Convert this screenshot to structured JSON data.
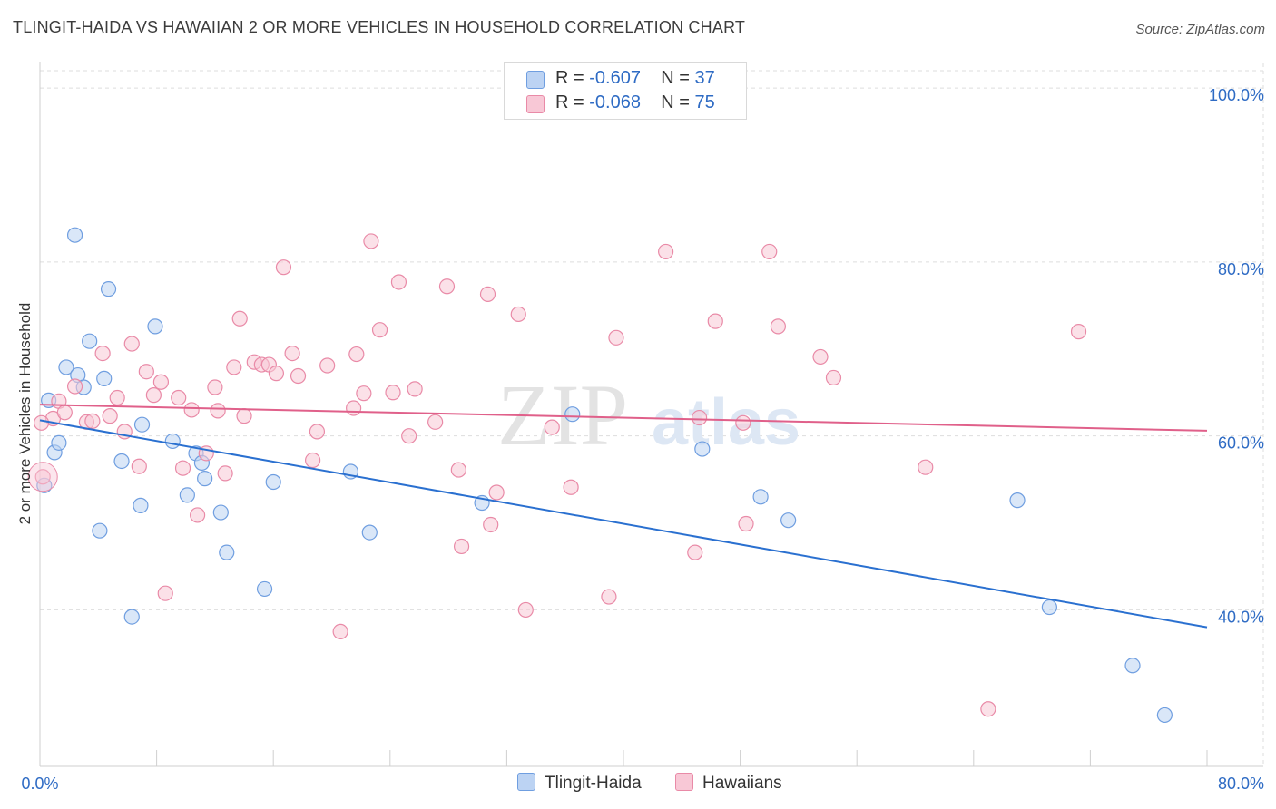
{
  "title": "TLINGIT-HAIDA VS HAWAIIAN 2 OR MORE VEHICLES IN HOUSEHOLD CORRELATION CHART",
  "source": "Source: ZipAtlas.com",
  "watermark": {
    "zip": "ZIP",
    "atlas": "atlas"
  },
  "legend": {
    "r_label": "R =",
    "n_label": "N =",
    "series": [
      {
        "name": "Tlingit-Haida",
        "r": "-0.607",
        "n": "37",
        "fill": "#bcd3f3",
        "stroke": "#6f9ee0"
      },
      {
        "name": "Hawaiians",
        "r": "-0.068",
        "n": "75",
        "fill": "#f8c8d6",
        "stroke": "#e98aa7"
      }
    ]
  },
  "colors": {
    "blue_line": "#2a70d0",
    "pink_line": "#e0608a",
    "axis_label": "#2e6bc4",
    "grid": "#dddddd"
  },
  "chart_data": {
    "type": "scatter",
    "title": "TLINGIT-HAIDA VS HAWAIIAN 2 OR MORE VEHICLES IN HOUSEHOLD CORRELATION CHART",
    "xlabel": "",
    "ylabel": "2 or more Vehicles in Household",
    "xlim": [
      0,
      80
    ],
    "ylim": [
      22,
      102
    ],
    "x_tick_labels": [
      "0.0%",
      "80.0%"
    ],
    "y_ticks": [
      40,
      60,
      80,
      100
    ],
    "y_tick_labels": [
      "40.0%",
      "60.0%",
      "80.0%",
      "100.0%"
    ],
    "grid": true,
    "series": [
      {
        "name": "Tlingit-Haida",
        "trend": {
          "x": [
            0,
            80
          ],
          "y": [
            61.8,
            38.0
          ]
        },
        "points": [
          [
            0.3,
            54.3
          ],
          [
            0.6,
            64.1
          ],
          [
            1.0,
            58.1
          ],
          [
            1.3,
            59.2
          ],
          [
            1.8,
            67.9
          ],
          [
            2.4,
            83.1
          ],
          [
            2.6,
            67.0
          ],
          [
            3.0,
            65.6
          ],
          [
            3.4,
            70.9
          ],
          [
            4.1,
            49.1
          ],
          [
            4.4,
            66.6
          ],
          [
            4.7,
            76.9
          ],
          [
            5.6,
            57.1
          ],
          [
            6.3,
            39.2
          ],
          [
            6.9,
            52.0
          ],
          [
            7.0,
            61.3
          ],
          [
            7.9,
            72.6
          ],
          [
            9.1,
            59.4
          ],
          [
            10.1,
            53.2
          ],
          [
            10.7,
            58.0
          ],
          [
            11.1,
            56.9
          ],
          [
            11.3,
            55.1
          ],
          [
            12.4,
            51.2
          ],
          [
            12.8,
            46.6
          ],
          [
            15.4,
            42.4
          ],
          [
            16.0,
            54.7
          ],
          [
            21.3,
            55.9
          ],
          [
            22.6,
            48.9
          ],
          [
            30.3,
            52.3
          ],
          [
            36.5,
            62.5
          ],
          [
            45.4,
            58.5
          ],
          [
            49.4,
            53.0
          ],
          [
            51.3,
            50.3
          ],
          [
            67.0,
            52.6
          ],
          [
            69.2,
            40.3
          ],
          [
            74.9,
            33.6
          ],
          [
            77.1,
            27.9
          ]
        ]
      },
      {
        "name": "Hawaiians",
        "trend": {
          "x": [
            0,
            80
          ],
          "y": [
            63.6,
            60.6
          ]
        },
        "points": [
          [
            0.2,
            55.3
          ],
          [
            0.9,
            62.0
          ],
          [
            1.3,
            64.0
          ],
          [
            1.7,
            62.7
          ],
          [
            2.4,
            65.7
          ],
          [
            3.2,
            61.6
          ],
          [
            3.6,
            61.7
          ],
          [
            4.3,
            69.5
          ],
          [
            4.8,
            62.3
          ],
          [
            5.3,
            64.4
          ],
          [
            5.8,
            60.5
          ],
          [
            6.3,
            70.6
          ],
          [
            6.8,
            56.5
          ],
          [
            7.3,
            67.4
          ],
          [
            7.8,
            64.7
          ],
          [
            8.3,
            66.2
          ],
          [
            8.6,
            41.9
          ],
          [
            9.5,
            64.4
          ],
          [
            9.8,
            56.3
          ],
          [
            10.4,
            63.0
          ],
          [
            10.8,
            50.9
          ],
          [
            11.4,
            58.0
          ],
          [
            12.0,
            65.6
          ],
          [
            12.2,
            62.9
          ],
          [
            12.7,
            55.7
          ],
          [
            13.3,
            67.9
          ],
          [
            13.7,
            73.5
          ],
          [
            14.0,
            62.3
          ],
          [
            14.7,
            68.5
          ],
          [
            15.2,
            68.2
          ],
          [
            15.7,
            68.2
          ],
          [
            16.2,
            67.2
          ],
          [
            16.7,
            79.4
          ],
          [
            17.3,
            69.5
          ],
          [
            17.7,
            66.9
          ],
          [
            18.7,
            57.2
          ],
          [
            19.0,
            60.5
          ],
          [
            19.7,
            68.1
          ],
          [
            20.6,
            37.5
          ],
          [
            21.5,
            63.2
          ],
          [
            21.7,
            69.4
          ],
          [
            22.2,
            64.9
          ],
          [
            22.7,
            82.4
          ],
          [
            23.3,
            72.2
          ],
          [
            24.2,
            65.0
          ],
          [
            24.6,
            77.7
          ],
          [
            25.3,
            60.0
          ],
          [
            25.7,
            65.4
          ],
          [
            27.1,
            61.6
          ],
          [
            27.9,
            77.2
          ],
          [
            28.7,
            56.1
          ],
          [
            28.9,
            47.3
          ],
          [
            30.7,
            76.3
          ],
          [
            30.9,
            49.8
          ],
          [
            31.3,
            53.5
          ],
          [
            32.8,
            74.0
          ],
          [
            33.3,
            40.0
          ],
          [
            35.1,
            61.0
          ],
          [
            36.4,
            54.1
          ],
          [
            39.0,
            41.5
          ],
          [
            39.5,
            71.3
          ],
          [
            42.9,
            81.2
          ],
          [
            44.9,
            46.6
          ],
          [
            45.2,
            62.1
          ],
          [
            46.3,
            73.2
          ],
          [
            48.2,
            61.5
          ],
          [
            48.4,
            49.9
          ],
          [
            50.0,
            81.2
          ],
          [
            50.6,
            72.6
          ],
          [
            53.5,
            69.1
          ],
          [
            54.4,
            66.7
          ],
          [
            60.7,
            56.4
          ],
          [
            65.0,
            28.6
          ],
          [
            71.2,
            72.0
          ],
          [
            0.1,
            61.5
          ]
        ]
      }
    ]
  }
}
